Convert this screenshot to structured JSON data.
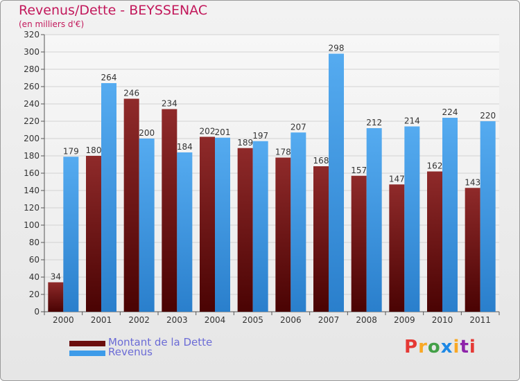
{
  "chart_data": {
    "type": "bar",
    "title": "Revenus/Dette - BEYSSENAC",
    "subtitle": "(en milliers d'€)",
    "categories": [
      "2000",
      "2001",
      "2002",
      "2003",
      "2004",
      "2005",
      "2006",
      "2007",
      "2008",
      "2009",
      "2010",
      "2011"
    ],
    "series": [
      {
        "name": "Montant de la Dette",
        "color": "#8b1a1a",
        "values": [
          34,
          180,
          246,
          234,
          202,
          189,
          178,
          168,
          157,
          147,
          162,
          143
        ]
      },
      {
        "name": "Revenus",
        "color": "#3d9be9",
        "values": [
          179,
          264,
          200,
          184,
          201,
          197,
          207,
          298,
          212,
          214,
          224,
          220
        ]
      }
    ],
    "ylim": [
      0,
      320
    ],
    "yticks": [
      0,
      20,
      40,
      60,
      80,
      100,
      120,
      140,
      160,
      180,
      200,
      220,
      240,
      260,
      280,
      300,
      320
    ],
    "grid": true,
    "legend": "bottom-left"
  },
  "legend": {
    "items": [
      {
        "label": "Montant de la Dette",
        "color": "#6b0d0d"
      },
      {
        "label": "Revenus",
        "color": "#3d9be9"
      }
    ]
  },
  "logo": {
    "text": "Proxiti",
    "colors": [
      "#e53935",
      "#f9a825",
      "#43a047",
      "#1e88e5",
      "#f9a825",
      "#8e24aa",
      "#e53935"
    ]
  }
}
